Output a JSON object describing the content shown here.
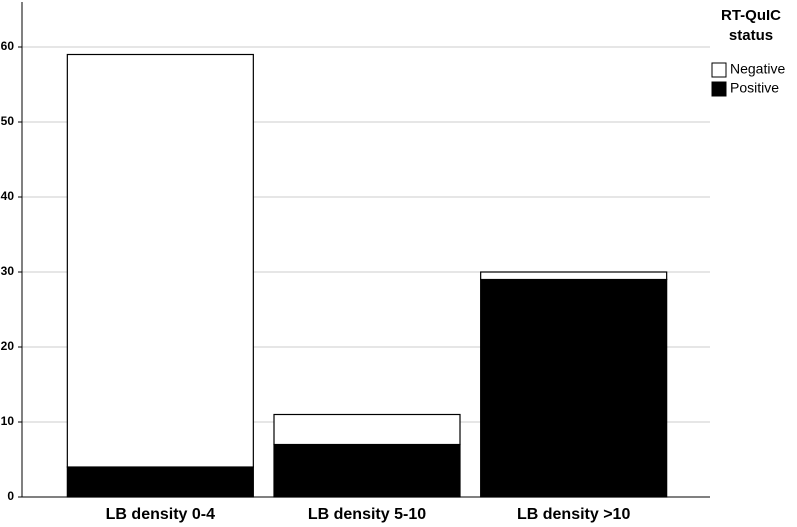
{
  "chart_data": {
    "type": "stacked_bar",
    "categories": [
      "LB density 0-4",
      "LB density 5-10",
      "LB density >10"
    ],
    "series": [
      {
        "name": "Positive",
        "color": "#000000",
        "values": [
          4,
          7,
          29
        ]
      },
      {
        "name": "Negative",
        "color": "#ffffff",
        "values": [
          55,
          4,
          1
        ]
      }
    ],
    "legend_title": "RT-QuIC status",
    "ylim": [
      0,
      66
    ],
    "yticks": [
      0,
      10,
      20,
      30,
      40,
      50,
      60
    ],
    "grid": true
  }
}
